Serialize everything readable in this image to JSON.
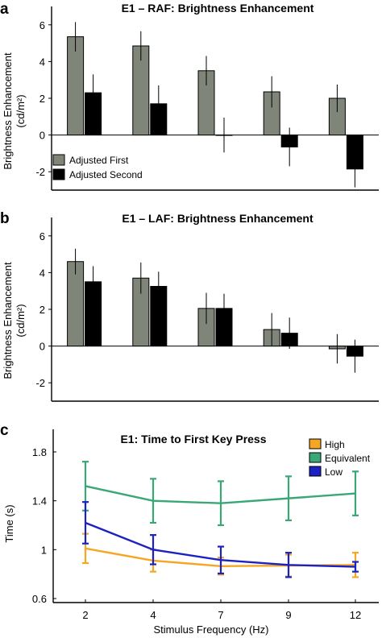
{
  "chart_data": [
    {
      "type": "bar",
      "panel_label": "a",
      "title": "E1 – RAF: Brightness Enhancement",
      "ylabel_line1": "Brightness Enhancement",
      "ylabel_line2": "(cd/m²)",
      "xlabel": "",
      "ylim": [
        -3,
        7
      ],
      "yticks": [
        -2,
        0,
        2,
        4,
        6
      ],
      "categories": [
        "2",
        "4",
        "7",
        "9",
        "12"
      ],
      "show_category_labels": false,
      "legend_position": "bottom-left",
      "series": [
        {
          "name": "Adjusted First",
          "color": "#808579",
          "values": [
            5.35,
            4.85,
            3.5,
            2.35,
            2.0
          ],
          "errors": [
            0.8,
            0.8,
            0.8,
            0.85,
            0.75
          ]
        },
        {
          "name": "Adjusted Second",
          "color": "#000000",
          "values": [
            2.3,
            1.7,
            0.0,
            -0.65,
            -1.85
          ],
          "errors": [
            1.0,
            1.0,
            0.95,
            1.05,
            1.0
          ]
        }
      ]
    },
    {
      "type": "bar",
      "panel_label": "b",
      "title": "E1 – LAF: Brightness Enhancement",
      "ylabel_line1": "Brightness Enhancement",
      "ylabel_line2": "(cd/m²)",
      "xlabel": "",
      "ylim": [
        -3,
        7
      ],
      "yticks": [
        -2,
        0,
        2,
        4,
        6
      ],
      "categories": [
        "2",
        "4",
        "7",
        "9",
        "12"
      ],
      "show_category_labels": false,
      "series": [
        {
          "name": "",
          "color": "#808579",
          "values": [
            4.6,
            3.7,
            2.05,
            0.9,
            -0.15
          ],
          "errors": [
            0.7,
            0.85,
            0.85,
            0.9,
            0.8
          ]
        },
        {
          "name": "",
          "color": "#000000",
          "values": [
            3.5,
            3.25,
            2.05,
            0.7,
            -0.55
          ],
          "errors": [
            0.85,
            0.8,
            0.8,
            0.85,
            0.9
          ]
        }
      ]
    },
    {
      "type": "line",
      "panel_label": "c",
      "title": "E1: Time to First Key Press",
      "ylabel": "Time (s)",
      "xlabel": "Stimulus Frequency (Hz)",
      "ylim": [
        0.6,
        1.8
      ],
      "yticks": [
        0.6,
        1.0,
        1.4,
        1.8
      ],
      "ytick_labels": [
        "0.6",
        "1",
        "1.4",
        "1.8"
      ],
      "x": [
        "2",
        "4",
        "7",
        "9",
        "12"
      ],
      "legend_position": "top-right",
      "series": [
        {
          "name": "High",
          "color": "#f5a623",
          "values": [
            1.01,
            0.91,
            0.865,
            0.87,
            0.875
          ],
          "errors": [
            0.12,
            0.09,
            0.07,
            0.09,
            0.1
          ]
        },
        {
          "name": "Equivalent",
          "color": "#3aa876",
          "values": [
            1.52,
            1.4,
            1.38,
            1.42,
            1.46
          ],
          "errors": [
            0.2,
            0.18,
            0.18,
            0.18,
            0.18
          ]
        },
        {
          "name": "Low",
          "color": "#1c22c2",
          "values": [
            1.22,
            1.0,
            0.915,
            0.875,
            0.86
          ],
          "errors": [
            0.17,
            0.12,
            0.11,
            0.1,
            0.04
          ]
        }
      ]
    }
  ]
}
